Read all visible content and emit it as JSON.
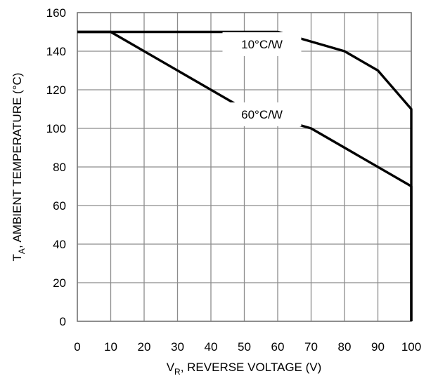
{
  "chart_data": {
    "type": "line",
    "title": "",
    "xlabel": {
      "main": "V",
      "sub": "R",
      "rest": ", REVERSE VOLTAGE (V)"
    },
    "ylabel": {
      "main": "T",
      "sub": "A",
      "rest": ", AMBIENT TEMPERATURE (°C)"
    },
    "xlim": [
      0,
      100
    ],
    "ylim": [
      0,
      160
    ],
    "x_ticks": [
      0,
      10,
      20,
      30,
      40,
      50,
      60,
      70,
      80,
      90,
      100
    ],
    "y_ticks": [
      0,
      20,
      40,
      60,
      80,
      100,
      120,
      140,
      160
    ],
    "grid": true,
    "legend": "none",
    "series": [
      {
        "name": "10°C/W",
        "x": [
          0,
          60,
          80,
          90,
          100,
          100
        ],
        "y": [
          150,
          150,
          140,
          130,
          110,
          0
        ]
      },
      {
        "name": "60°C/W",
        "x": [
          0,
          10,
          50,
          70,
          100,
          100
        ],
        "y": [
          150,
          150,
          110,
          100,
          70,
          0
        ]
      }
    ]
  }
}
